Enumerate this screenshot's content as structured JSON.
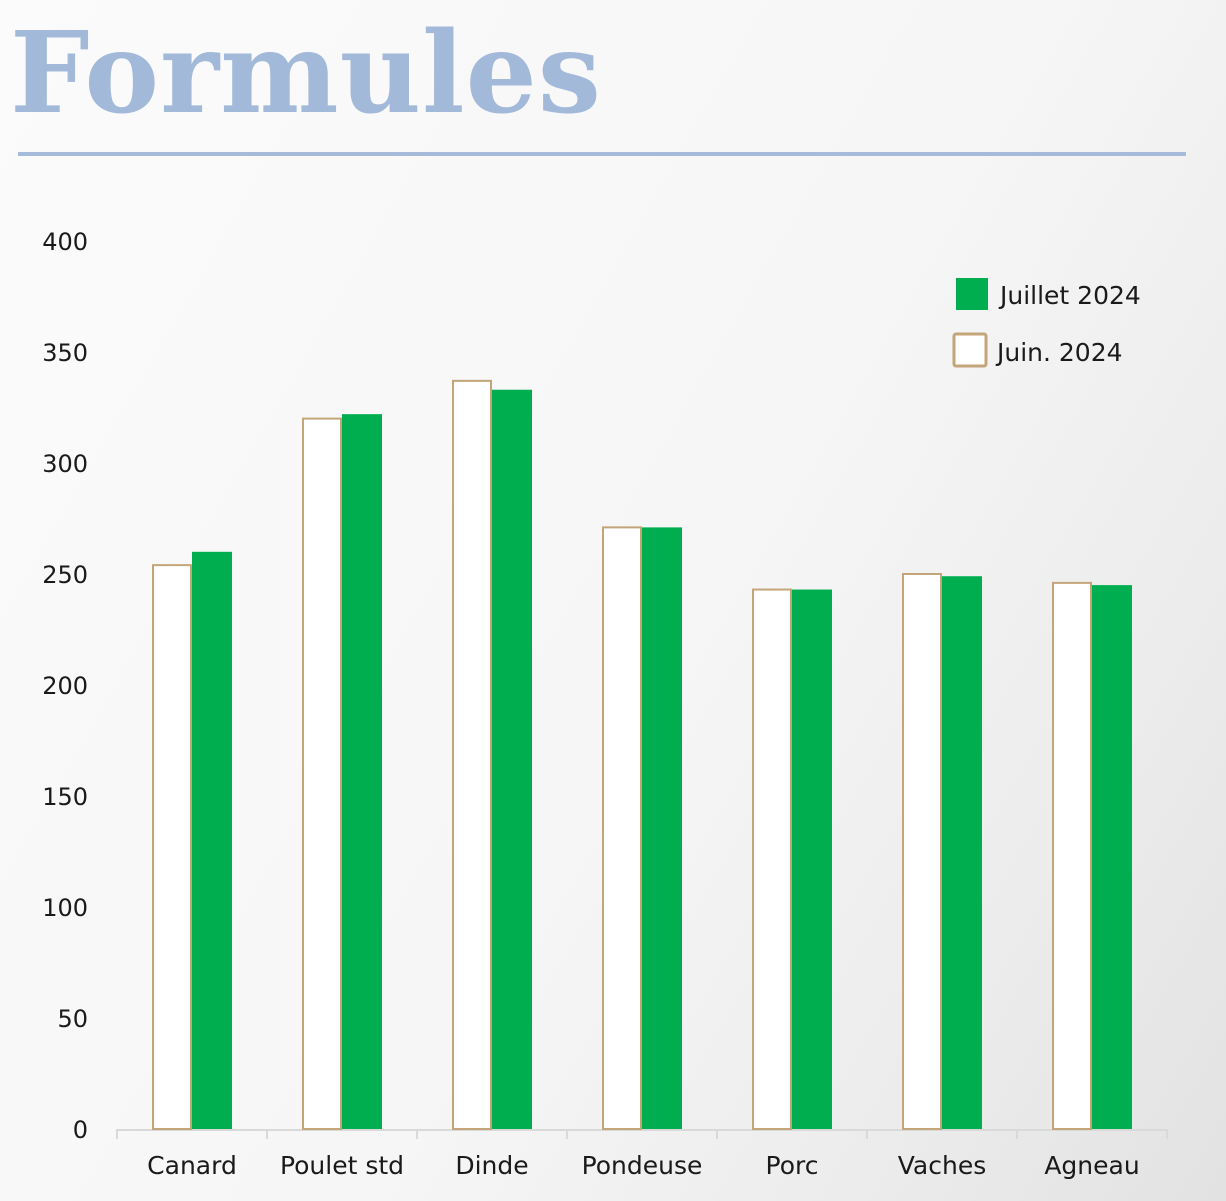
{
  "title": "Formules",
  "chart_data": {
    "type": "bar",
    "title": "",
    "xlabel": "",
    "ylabel": "",
    "ylim": [
      0,
      400
    ],
    "yticks": [
      0,
      50,
      100,
      150,
      200,
      250,
      300,
      350,
      400
    ],
    "grid": false,
    "legend_position": "top-right",
    "categories": [
      "Canard",
      "Poulet std",
      "Dinde",
      "Pondeuse",
      "Porc",
      "Vaches",
      "Agneau"
    ],
    "series": [
      {
        "name": "Juin. 2024",
        "style": "outline",
        "color": "#c4a57a",
        "values": [
          254,
          320,
          337,
          271,
          243,
          250,
          246
        ]
      },
      {
        "name": "Juillet 2024",
        "style": "filled",
        "color": "#00ae4f",
        "values": [
          260,
          322,
          333,
          271,
          243,
          249,
          245
        ]
      }
    ],
    "legend_order": [
      "Juillet 2024",
      "Juin. 2024"
    ]
  }
}
